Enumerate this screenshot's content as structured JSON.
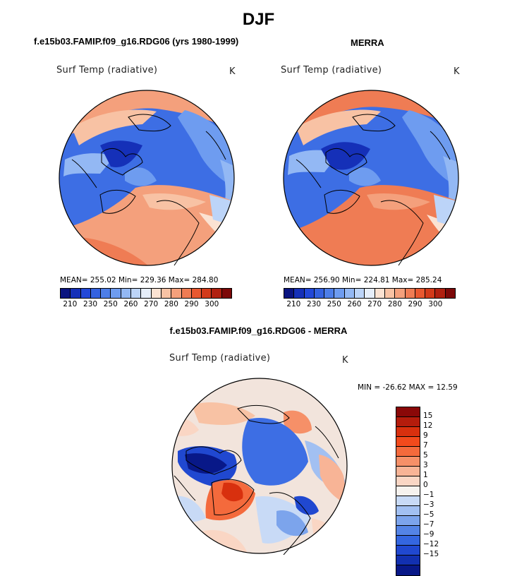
{
  "figure": {
    "title": "DJF",
    "diff_title": "f.e15b03.FAMIP.f09_g16.RDG06 - MERRA"
  },
  "panels": [
    {
      "title": "f.e15b03.FAMIP.f09_g16.RDG06 (yrs 1980-1999)",
      "variable": "Surf Temp (radiative)",
      "units": "K",
      "stats": "MEAN= 255.02   Min= 229.36   Max= 284.80"
    },
    {
      "title": "MERRA",
      "variable": "Surf Temp (radiative)",
      "units": "K",
      "stats": "MEAN= 256.90   Min= 224.81   Max= 285.24"
    },
    {
      "variable": "Surf Temp (radiative)",
      "units": "K",
      "stats": "MIN = -26.62 MAX =   12.59"
    }
  ],
  "colorbar_abs": {
    "colors": [
      "#0a1480",
      "#1530b8",
      "#2248d8",
      "#3462e0",
      "#4d7ee8",
      "#6e9cf0",
      "#93b8f4",
      "#bcd4f8",
      "#e6eefa",
      "#fbe2d2",
      "#f8c2a4",
      "#f4a07c",
      "#ef7c54",
      "#e85830",
      "#d23a1a",
      "#b02010",
      "#7c0808"
    ],
    "tick_labels": [
      "210",
      "230",
      "250",
      "260",
      "270",
      "280",
      "290",
      "300"
    ]
  },
  "colorbar_diff": {
    "colors": [
      "#8a0808",
      "#b41c0c",
      "#d8300e",
      "#f24a1c",
      "#f46a3c",
      "#f69068",
      "#f8b496",
      "#fad6c4",
      "#f6f2ee",
      "#c8daf6",
      "#a2c0f2",
      "#7ca4ec",
      "#5484e6",
      "#3466e0",
      "#2048d0",
      "#1230b0",
      "#081888"
    ],
    "tick_labels": [
      "15",
      "12",
      "9",
      "7",
      "5",
      "3",
      "1",
      "0",
      "−1",
      "−3",
      "−5",
      "−7",
      "−9",
      "−12",
      "−15"
    ]
  }
}
